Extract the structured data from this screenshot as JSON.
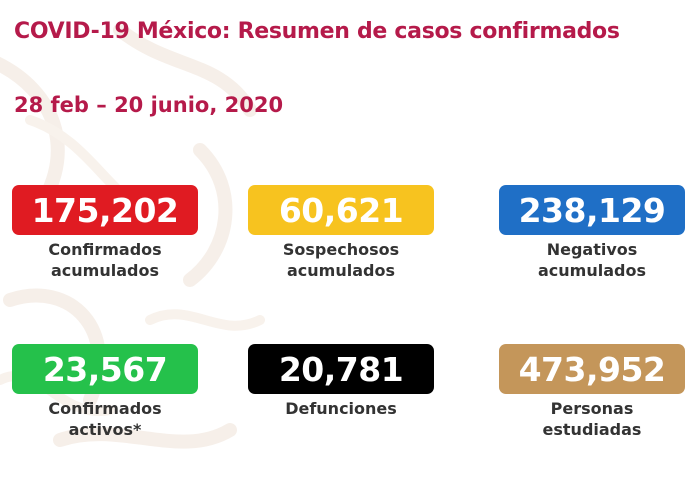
{
  "header": {
    "title": "COVID-19 México: Resumen de casos confirmados",
    "date_range": "28 feb – 20 junio, 2020"
  },
  "stats": [
    {
      "value": "175,202",
      "label_line1": "Confirmados",
      "label_line2": "acumulados",
      "color": "#e01b22"
    },
    {
      "value": "60,621",
      "label_line1": "Sospechosos",
      "label_line2": "acumulados",
      "color": "#f7c31f"
    },
    {
      "value": "238,129",
      "label_line1": "Negativos",
      "label_line2": "acumulados",
      "color": "#1f6fc6"
    },
    {
      "value": "23,567",
      "label_line1": "Confirmados",
      "label_line2": "activos*",
      "color": "#25c14b"
    },
    {
      "value": "20,781",
      "label_line1": "Defunciones",
      "label_line2": "",
      "color": "#000000"
    },
    {
      "value": "473,952",
      "label_line1": "Personas",
      "label_line2": "estudiadas",
      "color": "#c4965a"
    }
  ]
}
